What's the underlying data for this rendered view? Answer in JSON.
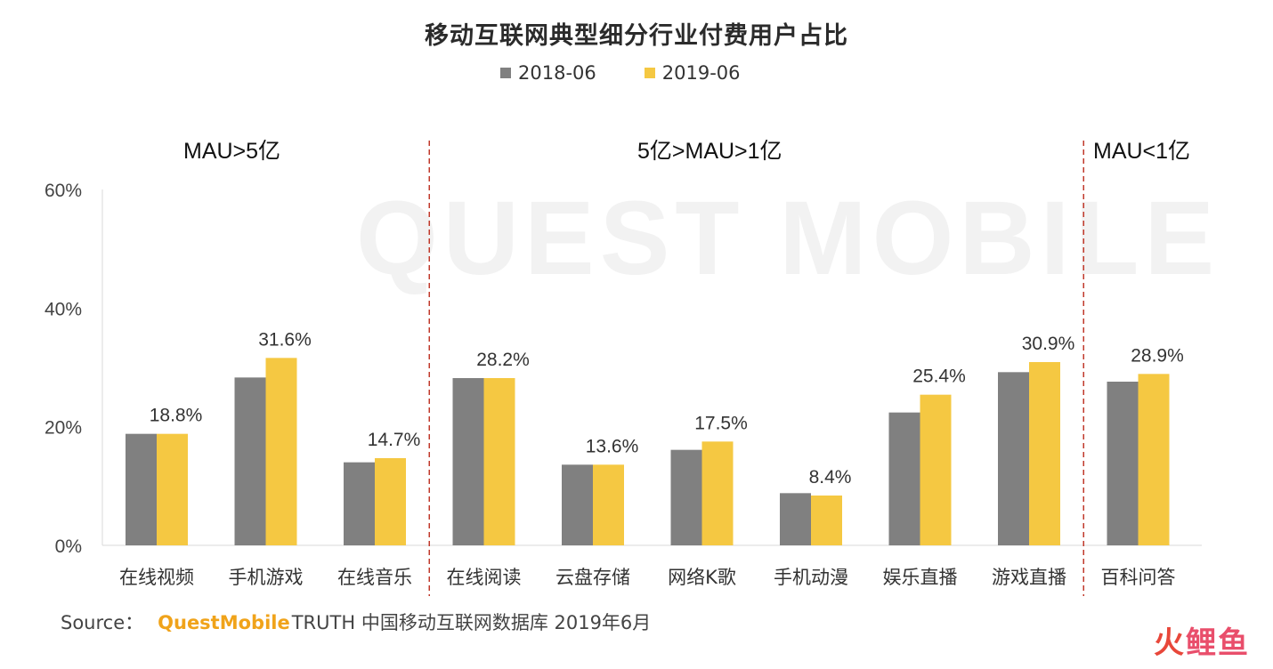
{
  "watermark": {
    "text": "QUEST MOBILE"
  },
  "legend": [
    {
      "label": "2018-06",
      "color": "#808080"
    },
    {
      "label": "2019-06",
      "color": "#f5c842"
    }
  ],
  "groups": [
    {
      "label": "MAU>5亿"
    },
    {
      "label": "5亿>MAU>1亿"
    },
    {
      "label": "MAU<1亿"
    }
  ],
  "footer": {
    "source_label": "Source：",
    "brand": "QuestMobile",
    "text": "TRUTH 中国移动互联网数据库 2019年6月"
  },
  "corner_logo": {
    "part1": "火",
    "part2": "鲤鱼"
  },
  "chart_data": {
    "type": "bar",
    "title": "移动互联网典型细分行业付费用户占比",
    "categories": [
      "在线视频",
      "手机游戏",
      "在线音乐",
      "在线阅读",
      "云盘存储",
      "网络K歌",
      "手机动漫",
      "娱乐直播",
      "游戏直播",
      "百科问答"
    ],
    "series": [
      {
        "name": "2018-06",
        "values": [
          18.8,
          28.3,
          14.0,
          28.2,
          13.6,
          16.1,
          8.8,
          22.4,
          29.2,
          27.6
        ],
        "color": "#808080"
      },
      {
        "name": "2019-06",
        "values": [
          18.8,
          31.6,
          14.7,
          28.2,
          13.6,
          17.5,
          8.4,
          25.4,
          30.9,
          28.9
        ],
        "color": "#f5c842"
      }
    ],
    "data_labels": [
      "18.8%",
      "31.6%",
      "14.7%",
      "28.2%",
      "13.6%",
      "17.5%",
      "8.4%",
      "25.4%",
      "30.9%",
      "28.9%"
    ],
    "yticks": [
      "0%",
      "20%",
      "40%",
      "60%"
    ],
    "ytick_values": [
      0,
      20,
      40,
      60
    ],
    "ylim": [
      0,
      60
    ],
    "grid": false,
    "legend_position": "top-center",
    "group_dividers_after": [
      2,
      8
    ]
  }
}
